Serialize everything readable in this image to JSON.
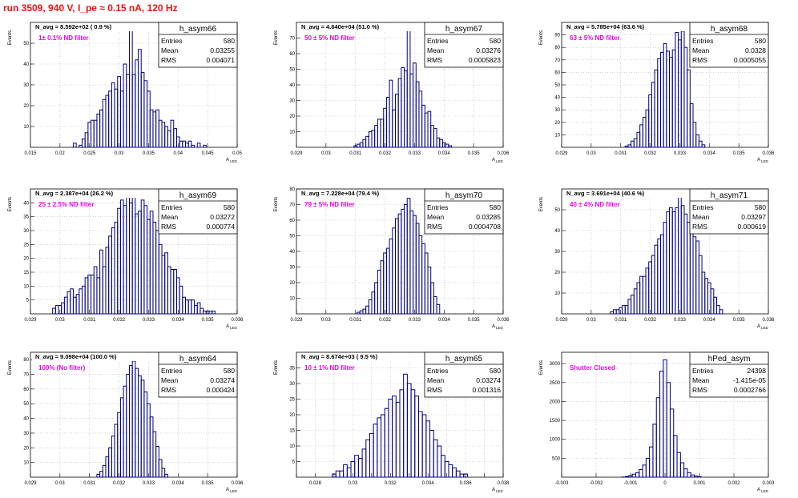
{
  "page_title": "run 3509,   940 V, I_pe ≈ 0.15 nA, 120 Hz",
  "colors": {
    "title": "#ee1111",
    "annotation": "#ee00ee",
    "histogram": "#000080",
    "grid": "#bbbbbb",
    "axis": "#000000"
  },
  "axis_labels": {
    "y": "Events",
    "x": "A",
    "x_sub": "LED"
  },
  "stats_labels": {
    "entries": "Entries",
    "mean": "Mean",
    "rms": "RMS"
  },
  "chart_data": [
    {
      "type": "bar",
      "histogram": "h_asym66",
      "navg": "N_avg = 8.592e+02 ( 0.9 %)",
      "filter": "1± 0.1% ND filter",
      "stats": {
        "entries": "580",
        "mean": "0.03255",
        "rms": "0.004071"
      },
      "xlim": [
        0.015,
        0.05
      ],
      "ylim": [
        0,
        60
      ],
      "xticks": [
        0.015,
        0.02,
        0.025,
        0.03,
        0.035,
        0.04,
        0.045,
        0.05
      ],
      "xtick_labels": [
        "0.015",
        "0.02",
        "0.025",
        "0.03",
        "0.035",
        "0.04",
        "0.045",
        "0.05"
      ],
      "yticks": [
        10,
        20,
        30,
        40,
        50
      ],
      "ytick_labels": [
        "10",
        "20",
        "30",
        "40",
        "50"
      ],
      "bin_width": 0.0005,
      "x": [
        0.0225,
        0.0235,
        0.024,
        0.0245,
        0.025,
        0.0255,
        0.026,
        0.0265,
        0.027,
        0.0275,
        0.028,
        0.0285,
        0.029,
        0.0295,
        0.03,
        0.0305,
        0.031,
        0.0315,
        0.032,
        0.0325,
        0.033,
        0.0335,
        0.034,
        0.0345,
        0.035,
        0.0355,
        0.036,
        0.0365,
        0.037,
        0.0375,
        0.038,
        0.0385,
        0.039,
        0.0395,
        0.04,
        0.0405,
        0.041,
        0.0415,
        0.042,
        0.0425,
        0.0435,
        0.0445
      ],
      "values": [
        2,
        1,
        4,
        7,
        12,
        13,
        13,
        16,
        18,
        23,
        25,
        27,
        31,
        28,
        34,
        27,
        40,
        35,
        57,
        35,
        42,
        47,
        36,
        32,
        27,
        18,
        17,
        18,
        13,
        12,
        10,
        8,
        13,
        9,
        5,
        3,
        3,
        2,
        3,
        1,
        2,
        1
      ]
    },
    {
      "type": "bar",
      "histogram": "h_asym67",
      "navg": "N_avg = 4.640e+04 (51.0 %)",
      "filter": "50 ± 5% ND filter",
      "stats": {
        "entries": "580",
        "mean": "0.03276",
        "rms": "0.0005823"
      },
      "xlim": [
        0.029,
        0.036
      ],
      "ylim": [
        0,
        80
      ],
      "xticks": [
        0.029,
        0.03,
        0.031,
        0.032,
        0.033,
        0.034,
        0.035,
        0.036
      ],
      "xtick_labels": [
        "0.029",
        "0.03",
        "0.031",
        "0.032",
        "0.033",
        "0.034",
        "0.035",
        "0.036"
      ],
      "yticks": [
        10,
        20,
        30,
        40,
        50,
        60,
        70
      ],
      "ytick_labels": [
        "10",
        "20",
        "30",
        "40",
        "50",
        "60",
        "70"
      ],
      "bin_width": 0.0001,
      "x": [
        0.031,
        0.0311,
        0.0312,
        0.0313,
        0.0314,
        0.0315,
        0.0316,
        0.0317,
        0.0318,
        0.0319,
        0.032,
        0.0321,
        0.0322,
        0.0323,
        0.0324,
        0.0325,
        0.0326,
        0.0327,
        0.0328,
        0.0329,
        0.033,
        0.0331,
        0.0332,
        0.0333,
        0.0334,
        0.0335,
        0.0336,
        0.0337,
        0.0338,
        0.0339,
        0.034,
        0.0341,
        0.0342
      ],
      "values": [
        1,
        2,
        3,
        5,
        7,
        10,
        11,
        14,
        18,
        18,
        25,
        32,
        43,
        24,
        34,
        44,
        51,
        49,
        76,
        47,
        54,
        42,
        36,
        27,
        22,
        23,
        14,
        12,
        6,
        5,
        3,
        2,
        1
      ]
    },
    {
      "type": "bar",
      "histogram": "h_asym68",
      "navg": "N_avg = 5.785e+04 (63.6 %)",
      "filter": "63 ± 5% ND filter",
      "stats": {
        "entries": "580",
        "mean": "0.0328",
        "rms": "0.0005055"
      },
      "xlim": [
        0.029,
        0.036
      ],
      "ylim": [
        0,
        100
      ],
      "xticks": [
        0.029,
        0.03,
        0.031,
        0.032,
        0.033,
        0.034,
        0.035,
        0.036
      ],
      "xtick_labels": [
        "0.029",
        "0.03",
        "0.031",
        "0.032",
        "0.033",
        "0.034",
        "0.035",
        "0.036"
      ],
      "yticks": [
        10,
        20,
        30,
        40,
        50,
        60,
        70,
        80,
        90
      ],
      "ytick_labels": [
        "10",
        "20",
        "30",
        "40",
        "50",
        "60",
        "70",
        "80",
        "90"
      ],
      "bin_width": 0.0001,
      "x": [
        0.0312,
        0.0313,
        0.0314,
        0.0315,
        0.0316,
        0.0317,
        0.0318,
        0.0319,
        0.032,
        0.0321,
        0.0322,
        0.0323,
        0.0324,
        0.0325,
        0.0326,
        0.0327,
        0.0328,
        0.0329,
        0.033,
        0.0331,
        0.0332,
        0.0333,
        0.0334,
        0.0335,
        0.0336,
        0.0337,
        0.0338
      ],
      "values": [
        1,
        2,
        5,
        7,
        12,
        18,
        24,
        30,
        42,
        52,
        62,
        71,
        76,
        83,
        77,
        72,
        78,
        92,
        86,
        93,
        80,
        62,
        35,
        20,
        10,
        5,
        2
      ]
    },
    {
      "type": "bar",
      "histogram": "h_asym69",
      "navg": "N_avg = 2.387e+04 (26.2 %)",
      "filter": "25 ± 2.5% ND filter",
      "stats": {
        "entries": "580",
        "mean": "0.03272",
        "rms": "0.000774"
      },
      "xlim": [
        0.029,
        0.036
      ],
      "ylim": [
        0,
        45
      ],
      "xticks": [
        0.029,
        0.03,
        0.031,
        0.032,
        0.033,
        0.034,
        0.035,
        0.036
      ],
      "xtick_labels": [
        "0.029",
        "0.03",
        "0.031",
        "0.032",
        "0.033",
        "0.034",
        "0.035",
        "0.036"
      ],
      "yticks": [
        5,
        10,
        15,
        20,
        25,
        30,
        35,
        40
      ],
      "ytick_labels": [
        "5",
        "10",
        "15",
        "20",
        "25",
        "30",
        "35",
        "40"
      ],
      "bin_width": 0.0001,
      "x": [
        0.0298,
        0.0299,
        0.03,
        0.0301,
        0.0302,
        0.0303,
        0.0304,
        0.0305,
        0.0306,
        0.0307,
        0.0308,
        0.0309,
        0.031,
        0.0311,
        0.0312,
        0.0313,
        0.0314,
        0.0315,
        0.0316,
        0.0317,
        0.0318,
        0.0319,
        0.032,
        0.0321,
        0.0322,
        0.0323,
        0.0324,
        0.0325,
        0.0326,
        0.0327,
        0.0328,
        0.0329,
        0.033,
        0.0331,
        0.0332,
        0.0333,
        0.0334,
        0.0335,
        0.0336,
        0.0337,
        0.0338,
        0.0339,
        0.034,
        0.0341,
        0.0342,
        0.0343,
        0.0344,
        0.0345,
        0.0346,
        0.0347,
        0.0348,
        0.0349,
        0.035,
        0.0351,
        0.0352,
        0.0353
      ],
      "values": [
        2,
        3,
        3,
        4,
        6,
        8,
        9,
        6,
        7,
        9,
        10,
        13,
        14,
        14,
        17,
        13,
        23,
        17,
        24,
        28,
        31,
        33,
        38,
        41,
        39,
        42,
        40,
        42,
        36,
        37,
        41,
        39,
        34,
        37,
        33,
        30,
        25,
        21,
        22,
        17,
        16,
        16,
        13,
        10,
        6,
        5,
        5,
        5,
        3,
        4,
        2,
        1,
        1,
        1,
        1,
        0
      ]
    },
    {
      "type": "bar",
      "histogram": "h_asym70",
      "navg": "N_avg = 7.228e+04 (79.4 %)",
      "filter": "79 ± 5% ND filter",
      "stats": {
        "entries": "580",
        "mean": "0.03285",
        "rms": "0.0004708"
      },
      "xlim": [
        0.029,
        0.036
      ],
      "ylim": [
        0,
        80
      ],
      "xticks": [
        0.029,
        0.03,
        0.031,
        0.032,
        0.033,
        0.034,
        0.035,
        0.036
      ],
      "xtick_labels": [
        "0.029",
        "0.03",
        "0.031",
        "0.032",
        "0.033",
        "0.034",
        "0.035",
        "0.036"
      ],
      "yticks": [
        10,
        20,
        30,
        40,
        50,
        60,
        70,
        80
      ],
      "ytick_labels": [
        "10",
        "20",
        "30",
        "40",
        "50",
        "60",
        "70",
        "80"
      ],
      "bin_width": 0.0001,
      "x": [
        0.0311,
        0.0312,
        0.0313,
        0.0314,
        0.0315,
        0.0316,
        0.0317,
        0.0318,
        0.0319,
        0.032,
        0.0321,
        0.0322,
        0.0323,
        0.0324,
        0.0325,
        0.0326,
        0.0327,
        0.0328,
        0.0329,
        0.033,
        0.0331,
        0.0332,
        0.0333,
        0.0334,
        0.0335,
        0.0336,
        0.0337,
        0.0338
      ],
      "values": [
        1,
        2,
        3,
        5,
        9,
        14,
        20,
        28,
        34,
        39,
        42,
        48,
        55,
        61,
        64,
        67,
        70,
        74,
        66,
        63,
        58,
        50,
        45,
        39,
        30,
        20,
        11,
        6
      ]
    },
    {
      "type": "bar",
      "histogram": "h_asym71",
      "navg": "N_avg = 3.691e+04 (40.6 %)",
      "filter": "40 ± 4% ND filter",
      "stats": {
        "entries": "580",
        "mean": "0.03297",
        "rms": "0.000619"
      },
      "xlim": [
        0.029,
        0.036
      ],
      "ylim": [
        0,
        60
      ],
      "xticks": [
        0.029,
        0.03,
        0.031,
        0.032,
        0.033,
        0.034,
        0.035,
        0.036
      ],
      "xtick_labels": [
        "0.029",
        "0.03",
        "0.031",
        "0.032",
        "0.033",
        "0.034",
        "0.035",
        "0.036"
      ],
      "yticks": [
        10,
        20,
        30,
        40,
        50
      ],
      "ytick_labels": [
        "10",
        "20",
        "30",
        "40",
        "50"
      ],
      "bin_width": 0.0001,
      "x": [
        0.0307,
        0.0308,
        0.0309,
        0.031,
        0.0311,
        0.0312,
        0.0313,
        0.0314,
        0.0315,
        0.0316,
        0.0317,
        0.0318,
        0.0319,
        0.032,
        0.0321,
        0.0322,
        0.0323,
        0.0324,
        0.0325,
        0.0326,
        0.0327,
        0.0328,
        0.0329,
        0.033,
        0.0331,
        0.0332,
        0.0333,
        0.0334,
        0.0335,
        0.0336,
        0.0337,
        0.0338,
        0.0339,
        0.034,
        0.0341,
        0.0342,
        0.0343,
        0.0344
      ],
      "values": [
        1,
        2,
        2,
        3,
        4,
        4,
        7,
        9,
        12,
        15,
        18,
        18,
        22,
        25,
        28,
        33,
        36,
        38,
        44,
        49,
        51,
        49,
        51,
        56,
        52,
        48,
        44,
        41,
        37,
        35,
        28,
        20,
        17,
        15,
        12,
        8,
        4,
        2
      ]
    },
    {
      "type": "bar",
      "histogram": "h_asym64",
      "navg": "N_avg = 9.098e+04 (100.0 %)",
      "filter": "100% (No filter)",
      "stats": {
        "entries": "580",
        "mean": "0.03274",
        "rms": "0.000424"
      },
      "xlim": [
        0.029,
        0.036
      ],
      "ylim": [
        0,
        85
      ],
      "xticks": [
        0.029,
        0.03,
        0.031,
        0.032,
        0.033,
        0.034,
        0.035,
        0.036
      ],
      "xtick_labels": [
        "0.029",
        "0.03",
        "0.031",
        "0.032",
        "0.033",
        "0.034",
        "0.035",
        "0.036"
      ],
      "yticks": [
        10,
        20,
        30,
        40,
        50,
        60,
        70,
        80
      ],
      "ytick_labels": [
        "10",
        "20",
        "30",
        "40",
        "50",
        "60",
        "70",
        "80"
      ],
      "bin_width": 0.0001,
      "x": [
        0.0313,
        0.0314,
        0.0315,
        0.0316,
        0.0317,
        0.0318,
        0.0319,
        0.032,
        0.0321,
        0.0322,
        0.0323,
        0.0324,
        0.0325,
        0.0326,
        0.0327,
        0.0328,
        0.0329,
        0.033,
        0.0331,
        0.0332,
        0.0333,
        0.0334,
        0.0335,
        0.0336
      ],
      "values": [
        2,
        4,
        8,
        14,
        20,
        28,
        36,
        44,
        54,
        62,
        70,
        76,
        79,
        74,
        69,
        66,
        58,
        50,
        41,
        31,
        21,
        12,
        6,
        2
      ]
    },
    {
      "type": "bar",
      "histogram": "h_asym65",
      "navg": "N_avg = 8.674e+03 ( 9.5 %)",
      "filter": "10 ± 1% ND filter",
      "stats": {
        "entries": "580",
        "mean": "0.03274",
        "rms": "0.001316"
      },
      "xlim": [
        0.027,
        0.038
      ],
      "ylim": [
        0,
        40
      ],
      "xticks": [
        0.027,
        0.028,
        0.029,
        0.03,
        0.031,
        0.032,
        0.033,
        0.034,
        0.035,
        0.036,
        0.037,
        0.038
      ],
      "xtick_labels": [
        "",
        "0.028",
        "",
        "0.03",
        "",
        "0.032",
        "",
        "0.034",
        "",
        "0.036",
        "",
        "0.038"
      ],
      "yticks": [
        5,
        10,
        15,
        20,
        25,
        30,
        35
      ],
      "ytick_labels": [
        "5",
        "10",
        "15",
        "20",
        "25",
        "30",
        "35"
      ],
      "bin_width": 0.0002,
      "x": [
        0.029,
        0.0292,
        0.0294,
        0.0296,
        0.0298,
        0.03,
        0.0302,
        0.0304,
        0.0306,
        0.0308,
        0.031,
        0.0312,
        0.0314,
        0.0316,
        0.0318,
        0.032,
        0.0322,
        0.0324,
        0.0326,
        0.0328,
        0.033,
        0.0332,
        0.0334,
        0.0336,
        0.0338,
        0.034,
        0.0342,
        0.0344,
        0.0346,
        0.0348,
        0.035,
        0.0352,
        0.0354,
        0.0356,
        0.0358,
        0.036
      ],
      "values": [
        1,
        2,
        2,
        4,
        3,
        5,
        7,
        6,
        9,
        12,
        14,
        17,
        19,
        20,
        22,
        25,
        26,
        24,
        28,
        33,
        30,
        28,
        26,
        21,
        20,
        18,
        15,
        12,
        10,
        7,
        5,
        4,
        3,
        2,
        1,
        1
      ]
    },
    {
      "type": "bar",
      "histogram": "hPed_asym",
      "navg": "",
      "filter": "Shutter Closed",
      "stats": {
        "entries": "24398",
        "mean": "-1.415e-05",
        "rms": "0.0002766"
      },
      "xlim": [
        -0.003,
        0.003
      ],
      "ylim": [
        0,
        3300
      ],
      "xticks": [
        -0.003,
        -0.002,
        -0.001,
        0,
        0.001,
        0.002,
        0.003
      ],
      "xtick_labels": [
        "-0.003",
        "-0.002",
        "-0.001",
        "0",
        "0.001",
        "0.002",
        "0.003"
      ],
      "yticks": [
        500,
        1000,
        1500,
        2000,
        2500,
        3000
      ],
      "ytick_labels": [
        "500",
        "1000",
        "1500",
        "2000",
        "2500",
        "3000"
      ],
      "bin_width": 0.0001,
      "x": [
        -0.0012,
        -0.0011,
        -0.001,
        -0.0009,
        -0.0008,
        -0.0007,
        -0.0006,
        -0.0005,
        -0.0004,
        -0.0003,
        -0.0002,
        -0.0001,
        0,
        0.0001,
        0.0002,
        0.0003,
        0.0004,
        0.0005,
        0.0006,
        0.0007,
        0.0008,
        0.0009,
        0.001
      ],
      "values": [
        5,
        20,
        40,
        80,
        120,
        200,
        320,
        500,
        800,
        1400,
        2100,
        2800,
        3100,
        2500,
        1800,
        1100,
        650,
        380,
        220,
        120,
        60,
        30,
        10
      ]
    }
  ]
}
